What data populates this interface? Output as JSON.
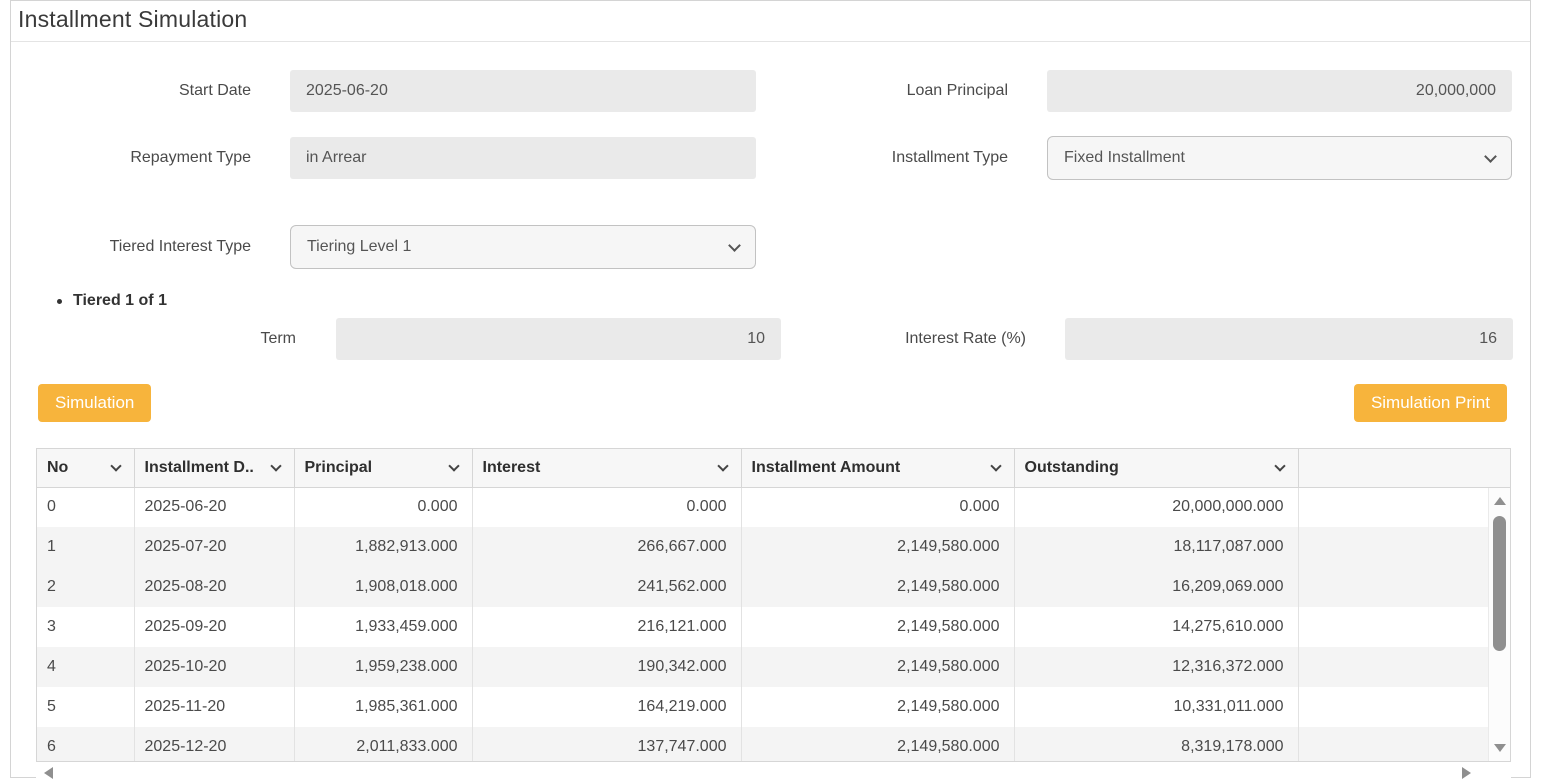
{
  "page": {
    "title": "Installment Simulation"
  },
  "form": {
    "start_date": {
      "label": "Start Date",
      "value": "2025-06-20"
    },
    "loan_principal": {
      "label": "Loan Principal",
      "value": "20,000,000"
    },
    "repayment_type": {
      "label": "Repayment Type",
      "value": "in Arrear"
    },
    "installment_type": {
      "label": "Installment Type",
      "value": "Fixed Installment"
    },
    "tiered_interest_type": {
      "label": "Tiered Interest Type",
      "value": "Tiering Level 1"
    },
    "tiered_section": {
      "title": "Tiered 1 of 1"
    },
    "term": {
      "label": "Term",
      "value": "10"
    },
    "interest_rate": {
      "label": "Interest Rate (%)",
      "value": "16"
    }
  },
  "buttons": {
    "simulation": "Simulation",
    "simulation_print": "Simulation Print"
  },
  "table": {
    "columns": [
      "No",
      "Installment D..",
      "Principal",
      "Interest",
      "Installment Amount",
      "Outstanding"
    ],
    "rows": [
      [
        "0",
        "2025-06-20",
        "0.000",
        "0.000",
        "0.000",
        "20,000,000.000"
      ],
      [
        "1",
        "2025-07-20",
        "1,882,913.000",
        "266,667.000",
        "2,149,580.000",
        "18,117,087.000"
      ],
      [
        "2",
        "2025-08-20",
        "1,908,018.000",
        "241,562.000",
        "2,149,580.000",
        "16,209,069.000"
      ],
      [
        "3",
        "2025-09-20",
        "1,933,459.000",
        "216,121.000",
        "2,149,580.000",
        "14,275,610.000"
      ],
      [
        "4",
        "2025-10-20",
        "1,959,238.000",
        "190,342.000",
        "2,149,580.000",
        "12,316,372.000"
      ],
      [
        "5",
        "2025-11-20",
        "1,985,361.000",
        "164,219.000",
        "2,149,580.000",
        "10,331,011.000"
      ],
      [
        "6",
        "2025-12-20",
        "2,011,833.000",
        "137,747.000",
        "2,149,580.000",
        "8,319,178.000"
      ]
    ]
  },
  "icons": {
    "header_dropdown": "chevron-down-icon",
    "select_dropdown": "chevron-down-icon",
    "scroll_up": "triangle-up",
    "scroll_down": "triangle-down",
    "scroll_left": "triangle-left",
    "scroll_right": "triangle-right"
  },
  "colors": {
    "accent": "#f7b43c",
    "button_text": "#ffffff",
    "disabled_input_bg": "#eaeaea",
    "table_stripe": "#f4f4f4"
  }
}
